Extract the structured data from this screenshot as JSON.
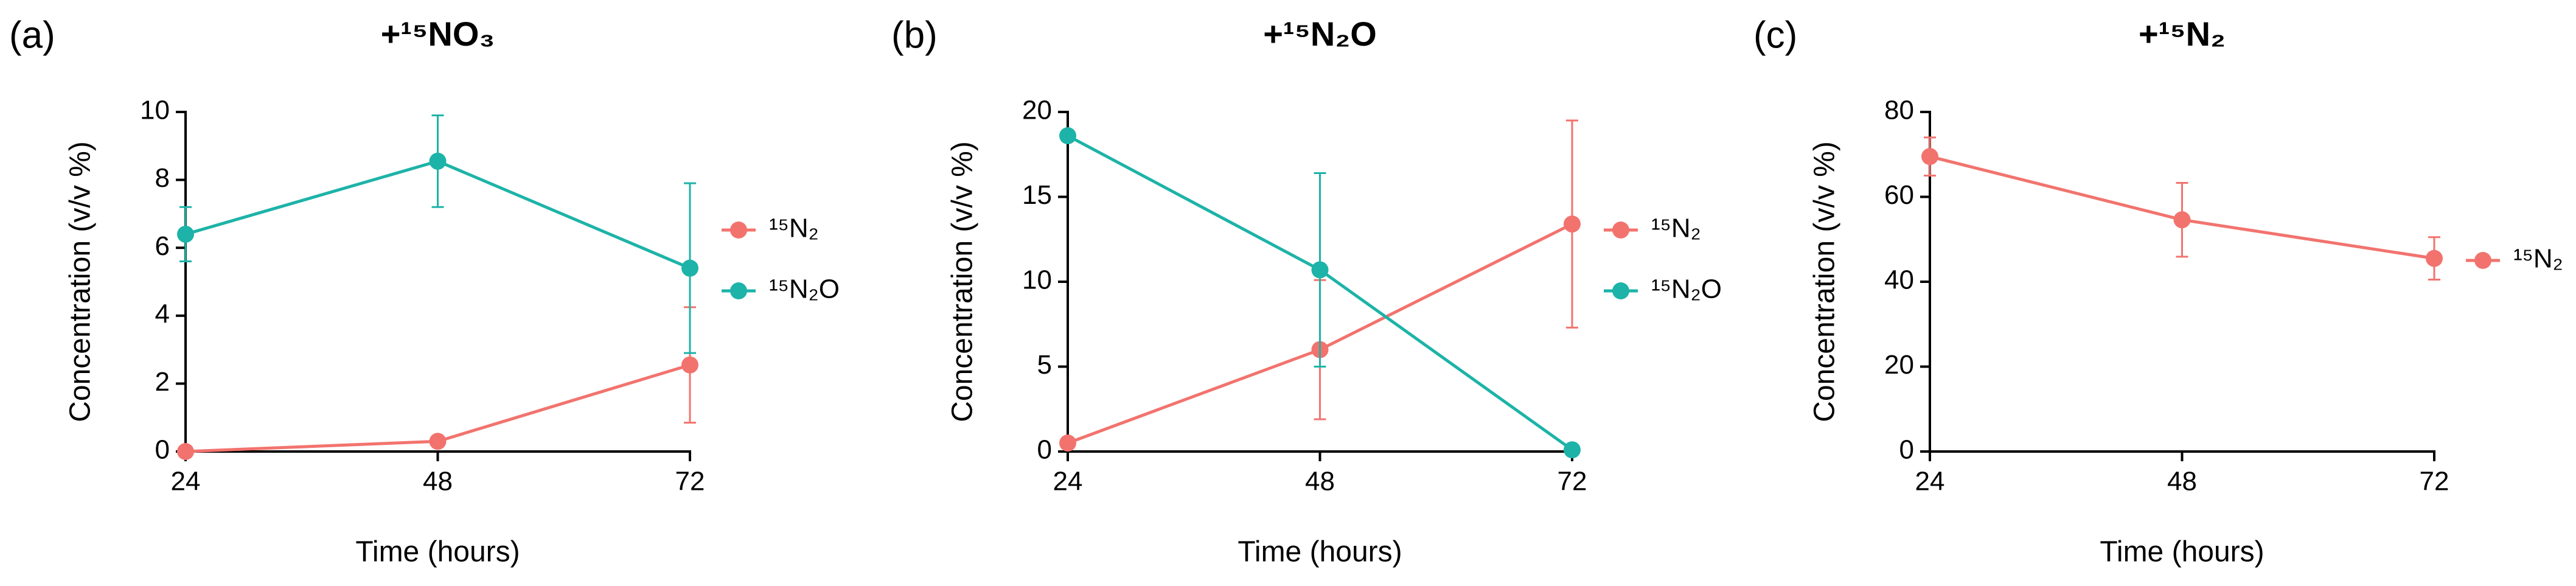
{
  "chart_data": [
    {
      "type": "line",
      "label": "(a)",
      "title": "+¹⁵NO₃",
      "xlabel": "Time (hours)",
      "ylabel": "Concentration (v/v %)",
      "x": [
        24,
        48,
        72
      ],
      "xlim": [
        24,
        72
      ],
      "xticks": [
        24,
        48,
        72
      ],
      "ylim": [
        0,
        10
      ],
      "yticks": [
        0,
        2,
        4,
        6,
        8,
        10
      ],
      "grid": false,
      "series": [
        {
          "name": "¹⁵N₂",
          "color": "#f2736e",
          "values": [
            0,
            0.3,
            2.55
          ],
          "errors": [
            0.05,
            0.15,
            1.7
          ]
        },
        {
          "name": "¹⁵N₂O",
          "color": "#1db3a8",
          "values": [
            6.4,
            8.55,
            5.4
          ],
          "errors": [
            0.8,
            1.35,
            2.5
          ]
        }
      ]
    },
    {
      "type": "line",
      "label": "(b)",
      "title": "+¹⁵N₂O",
      "xlabel": "Time (hours)",
      "ylabel": "Concentration (v/v %)",
      "x": [
        24,
        48,
        72
      ],
      "xlim": [
        24,
        72
      ],
      "xticks": [
        24,
        48,
        72
      ],
      "ylim": [
        0,
        20
      ],
      "yticks": [
        0,
        5,
        10,
        15,
        20
      ],
      "grid": false,
      "series": [
        {
          "name": "¹⁵N₂",
          "color": "#f2736e",
          "values": [
            0.5,
            6.0,
            13.4
          ],
          "errors": [
            0.2,
            4.1,
            6.1
          ]
        },
        {
          "name": "¹⁵N₂O",
          "color": "#1db3a8",
          "values": [
            18.6,
            10.7,
            0.1
          ],
          "errors": [
            0.3,
            5.7,
            0.1
          ]
        }
      ]
    },
    {
      "type": "line",
      "label": "(c)",
      "title": "+¹⁵N₂",
      "xlabel": "Time (hours)",
      "ylabel": "Concentration (v/v %)",
      "x": [
        24,
        48,
        72
      ],
      "xlim": [
        24,
        72
      ],
      "xticks": [
        24,
        48,
        72
      ],
      "ylim": [
        0,
        80
      ],
      "yticks": [
        0,
        20,
        40,
        60,
        80
      ],
      "grid": false,
      "series": [
        {
          "name": "¹⁵N₂",
          "color": "#f2736e",
          "values": [
            69.5,
            54.6,
            45.5
          ],
          "errors": [
            4.5,
            8.7,
            5.0
          ]
        }
      ]
    }
  ]
}
